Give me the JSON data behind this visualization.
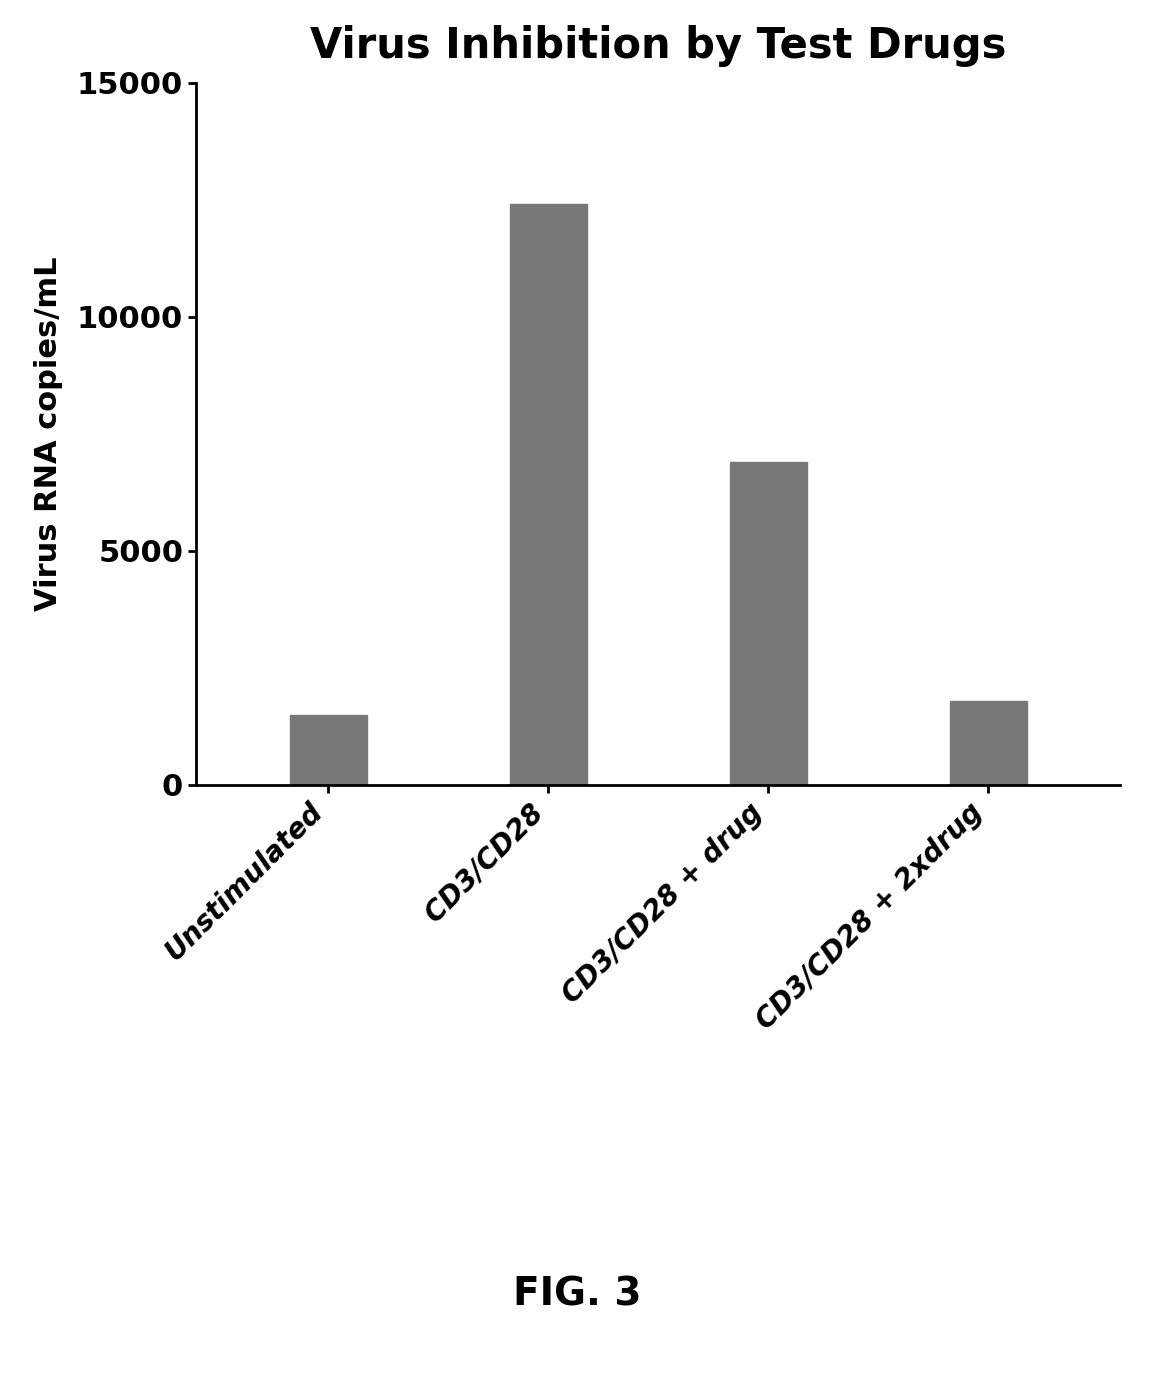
{
  "title": "Virus Inhibition by Test Drugs",
  "ylabel": "Virus RNA copies/mL",
  "categories": [
    "Unstimulated",
    "CD3/CD28",
    "CD3/CD28 + drug",
    "CD3/CD28 + 2xdrug"
  ],
  "values": [
    1500,
    12400,
    6900,
    1800
  ],
  "bar_color": "#787878",
  "ylim": [
    0,
    15000
  ],
  "yticks": [
    0,
    5000,
    10000,
    15000
  ],
  "ytick_labels": [
    "0",
    "5000",
    "10000",
    "15000"
  ],
  "fig_caption": "FIG. 3",
  "background_color": "#ffffff",
  "title_fontsize": 30,
  "ylabel_fontsize": 22,
  "ytick_fontsize": 22,
  "xtick_fontsize": 20,
  "caption_fontsize": 28
}
